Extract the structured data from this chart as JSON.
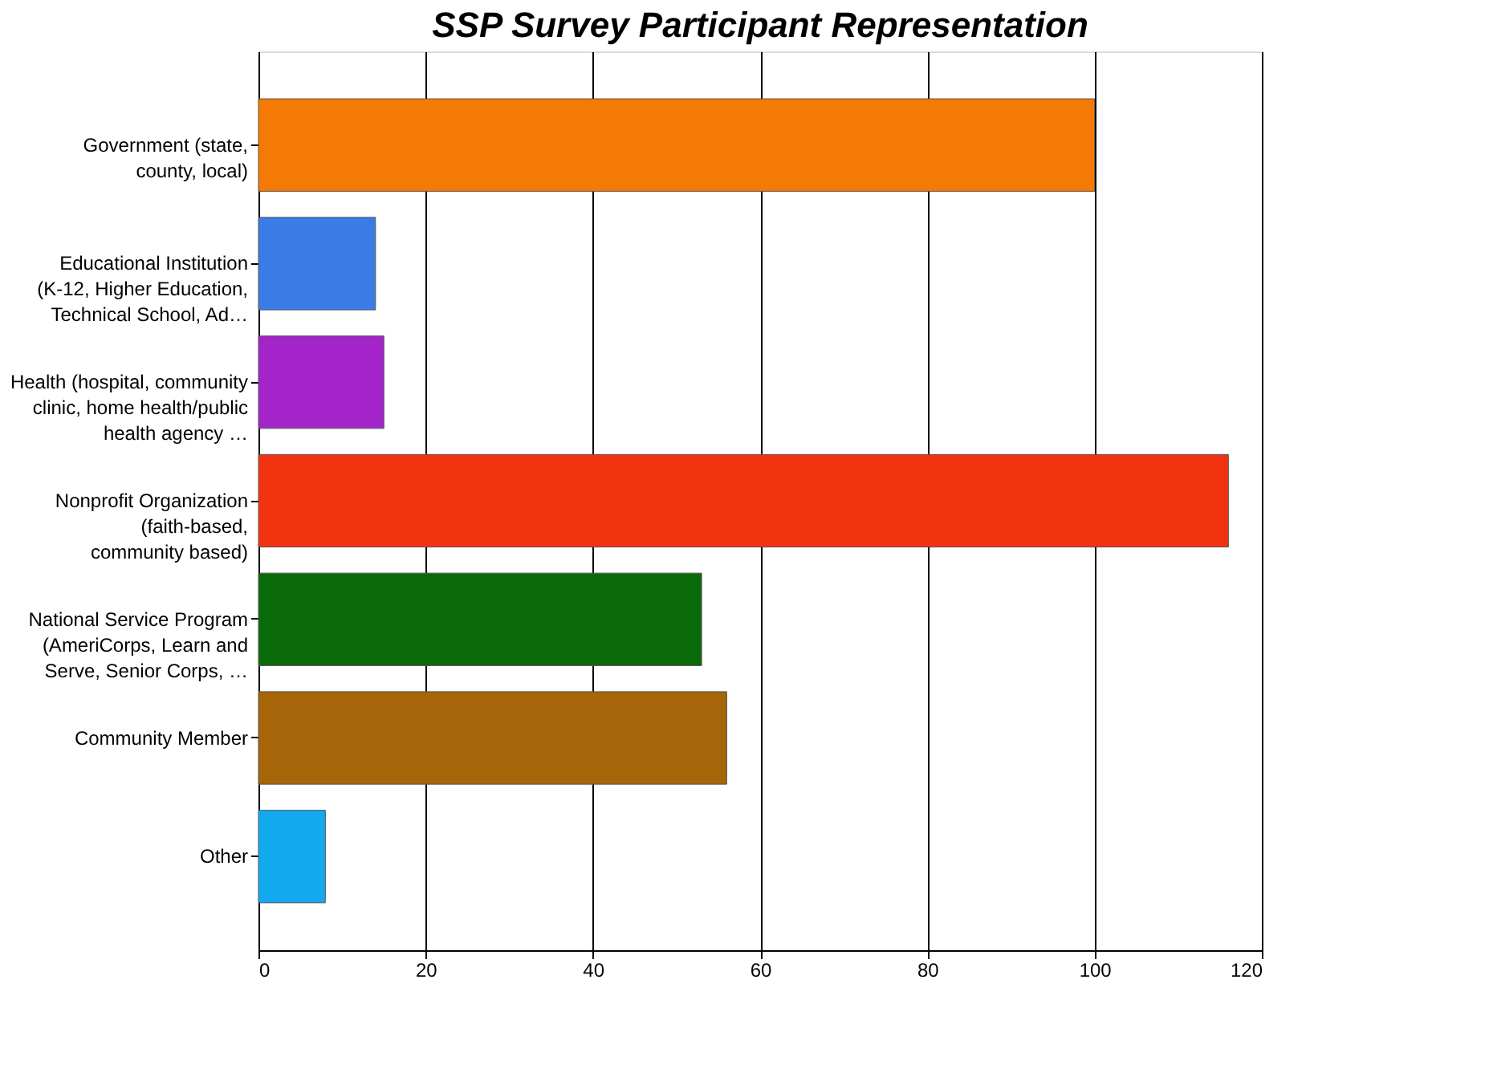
{
  "chart_data": {
    "type": "bar",
    "orientation": "horizontal",
    "title": "SSP Survey Participant Representation",
    "categories": [
      "Government (state,\ncounty, local)",
      "Educational Institution\n(K-12, Higher Education,\nTechnical School, Ad…",
      "Health (hospital, community\nclinic, home health/public\nhealth agency …",
      "Nonprofit Organization\n(faith-based,\ncommunity based)",
      "National Service Program\n(AmeriCorps, Learn and\nServe, Senior Corps, …",
      "Community Member",
      "Other"
    ],
    "values": [
      100,
      14,
      15,
      116,
      53,
      56,
      8
    ],
    "colors": [
      "#f57a05",
      "#3b7be6",
      "#a324c8",
      "#f2330f",
      "#0a6a0a",
      "#a66508",
      "#12a9ef"
    ],
    "xlim": [
      0,
      120
    ],
    "xticks": [
      0,
      20,
      40,
      60,
      80,
      100,
      120
    ],
    "grid": "x"
  }
}
